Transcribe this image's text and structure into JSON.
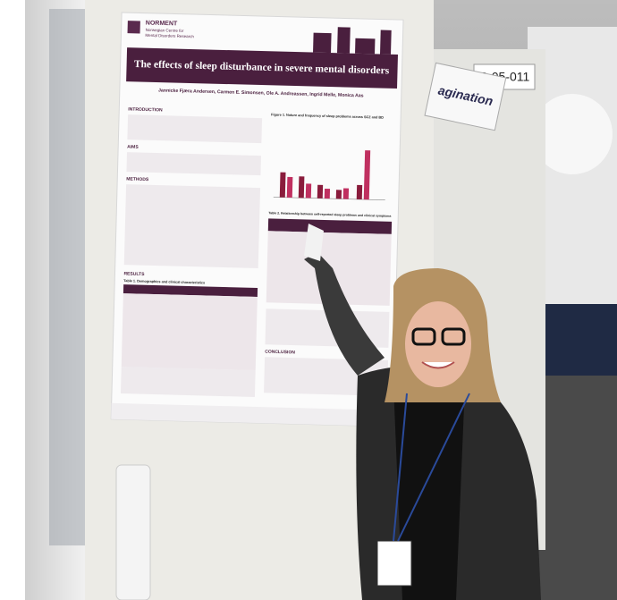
{
  "poster": {
    "logo": {
      "name": "NORMENT",
      "subtitle_1": "Norwegian Centre for",
      "subtitle_2": "Mental Disorders Research"
    },
    "title": "The effects of sleep disturbance in severe mental disorders",
    "authors": "Jannicke Fjæra Andersen, Carmen E. Simonsen, Ole A. Andreassen, Ingrid Melle, Monica Aas",
    "sections": [
      "INTRODUCTION",
      "AIMS",
      "METHODS",
      "RESULTS",
      "CONCLUSION"
    ],
    "figure_caption": "Figure 1. Nature and frequency of sleep problems across SCZ and BD",
    "table1_caption": "Table 1. Demographics and clinical characteristics",
    "table2_caption": "Table 2. Relationship between self-reported sleep problems and clinical symptoms"
  },
  "signs": {
    "board_number": "P-05-011",
    "hanging_sign": "agination"
  }
}
